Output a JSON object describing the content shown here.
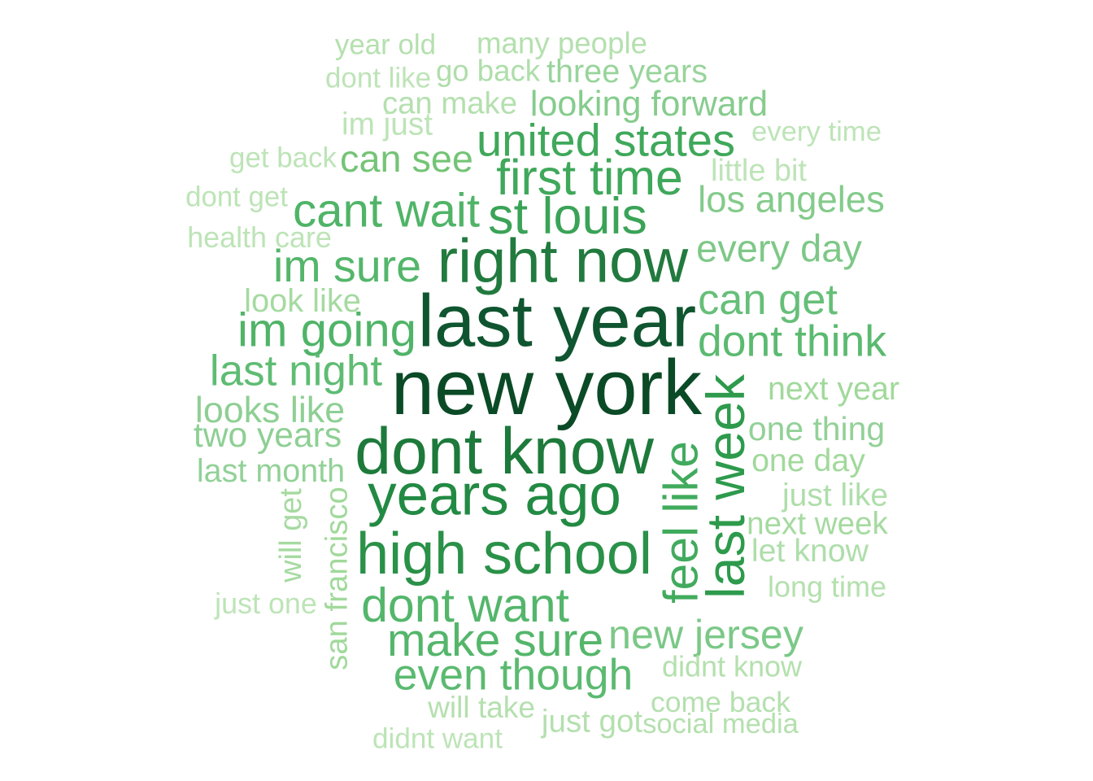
{
  "chart_data": {
    "type": "wordcloud",
    "title": "",
    "palette": [
      "#c7e9c0",
      "#a1d99b",
      "#74c476",
      "#41ab5d",
      "#238b45",
      "#006d2c",
      "#00441b"
    ],
    "words": [
      {
        "text": "new york",
        "freq": 100,
        "color": "#0b4a26",
        "vertical": false
      },
      {
        "text": "last year",
        "freq": 92,
        "color": "#0f5530",
        "vertical": false
      },
      {
        "text": "dont know",
        "freq": 80,
        "color": "#1d7a3b",
        "vertical": false
      },
      {
        "text": "right now",
        "freq": 75,
        "color": "#217a3e",
        "vertical": false
      },
      {
        "text": "years ago",
        "freq": 70,
        "color": "#228a43",
        "vertical": false
      },
      {
        "text": "high school",
        "freq": 68,
        "color": "#2a9148",
        "vertical": false
      },
      {
        "text": "last week",
        "freq": 62,
        "color": "#2d9a4c",
        "vertical": true
      },
      {
        "text": "feel like",
        "freq": 52,
        "color": "#41ab5d",
        "vertical": true
      },
      {
        "text": "st louis",
        "freq": 50,
        "color": "#3aa357",
        "vertical": false
      },
      {
        "text": "first time",
        "freq": 48,
        "color": "#3fa85a",
        "vertical": false
      },
      {
        "text": "united states",
        "freq": 47,
        "color": "#3fa85a",
        "vertical": false
      },
      {
        "text": "dont want",
        "freq": 46,
        "color": "#54b66b",
        "vertical": false
      },
      {
        "text": "cant wait",
        "freq": 45,
        "color": "#50b468",
        "vertical": false
      },
      {
        "text": "im going",
        "freq": 45,
        "color": "#50b468",
        "vertical": false
      },
      {
        "text": "im sure",
        "freq": 42,
        "color": "#54b66b",
        "vertical": false
      },
      {
        "text": "make sure",
        "freq": 42,
        "color": "#54b66b",
        "vertical": false
      },
      {
        "text": "even though",
        "freq": 41,
        "color": "#5bba70",
        "vertical": false
      },
      {
        "text": "dont think",
        "freq": 41,
        "color": "#5bba70",
        "vertical": false
      },
      {
        "text": "can get",
        "freq": 38,
        "color": "#66bf78",
        "vertical": false
      },
      {
        "text": "last night",
        "freq": 38,
        "color": "#5fbc73",
        "vertical": false
      },
      {
        "text": "new jersey",
        "freq": 35,
        "color": "#7bc887",
        "vertical": false
      },
      {
        "text": "can see",
        "freq": 33,
        "color": "#74c476",
        "vertical": false
      },
      {
        "text": "every day",
        "freq": 33,
        "color": "#7ec887",
        "vertical": false
      },
      {
        "text": "los angeles",
        "freq": 31,
        "color": "#84cb8b",
        "vertical": false
      },
      {
        "text": "looking forward",
        "freq": 30,
        "color": "#86cc8d",
        "vertical": false
      },
      {
        "text": "looks like",
        "freq": 30,
        "color": "#8ecf94",
        "vertical": false
      },
      {
        "text": "two years",
        "freq": 28,
        "color": "#8ecf94",
        "vertical": false
      },
      {
        "text": "last month",
        "freq": 27,
        "color": "#92d197",
        "vertical": false
      },
      {
        "text": "one thing",
        "freq": 27,
        "color": "#92d197",
        "vertical": false
      },
      {
        "text": "san francisco",
        "freq": 26,
        "color": "#a1d99b",
        "vertical": true
      },
      {
        "text": "three years",
        "freq": 26,
        "color": "#98d49b",
        "vertical": false
      },
      {
        "text": "next year",
        "freq": 25,
        "color": "#a1d99b",
        "vertical": false
      },
      {
        "text": "one day",
        "freq": 25,
        "color": "#a1d99b",
        "vertical": false
      },
      {
        "text": "next week",
        "freq": 25,
        "color": "#a5daa0",
        "vertical": false
      },
      {
        "text": "will get",
        "freq": 24,
        "color": "#a5daa0",
        "vertical": true
      },
      {
        "text": "look like",
        "freq": 24,
        "color": "#a5daa0",
        "vertical": false
      },
      {
        "text": "just like",
        "freq": 23,
        "color": "#aedeaa",
        "vertical": false
      },
      {
        "text": "let know",
        "freq": 23,
        "color": "#aedeaa",
        "vertical": false
      },
      {
        "text": "go back",
        "freq": 23,
        "color": "#aedeaa",
        "vertical": false
      },
      {
        "text": "many people",
        "freq": 23,
        "color": "#b4e0ae",
        "vertical": false
      },
      {
        "text": "can make",
        "freq": 23,
        "color": "#b4e0ae",
        "vertical": false
      },
      {
        "text": "year old",
        "freq": 22,
        "color": "#b4e0ae",
        "vertical": false
      },
      {
        "text": "long time",
        "freq": 22,
        "color": "#b4e0ae",
        "vertical": false
      },
      {
        "text": "just got",
        "freq": 22,
        "color": "#b4e0ae",
        "vertical": false
      },
      {
        "text": "come back",
        "freq": 22,
        "color": "#b4e0ae",
        "vertical": false
      },
      {
        "text": "didnt know",
        "freq": 22,
        "color": "#b4e0ae",
        "vertical": false
      },
      {
        "text": "social media",
        "freq": 22,
        "color": "#b4e0ae",
        "vertical": false
      },
      {
        "text": "will take",
        "freq": 22,
        "color": "#b4e0ae",
        "vertical": false
      },
      {
        "text": "didnt want",
        "freq": 21,
        "color": "#bde4b7",
        "vertical": false
      },
      {
        "text": "im just",
        "freq": 21,
        "color": "#bde4b7",
        "vertical": false
      },
      {
        "text": "dont like",
        "freq": 21,
        "color": "#bde4b7",
        "vertical": false
      },
      {
        "text": "every time",
        "freq": 21,
        "color": "#bde4b7",
        "vertical": false
      },
      {
        "text": "little bit",
        "freq": 21,
        "color": "#bde4b7",
        "vertical": false
      },
      {
        "text": "get back",
        "freq": 20,
        "color": "#bde4b7",
        "vertical": false
      },
      {
        "text": "dont get",
        "freq": 20,
        "color": "#bde4b7",
        "vertical": false
      },
      {
        "text": "health care",
        "freq": 20,
        "color": "#bde4b7",
        "vertical": false
      },
      {
        "text": "just one",
        "freq": 20,
        "color": "#bde4b7",
        "vertical": false
      }
    ]
  }
}
